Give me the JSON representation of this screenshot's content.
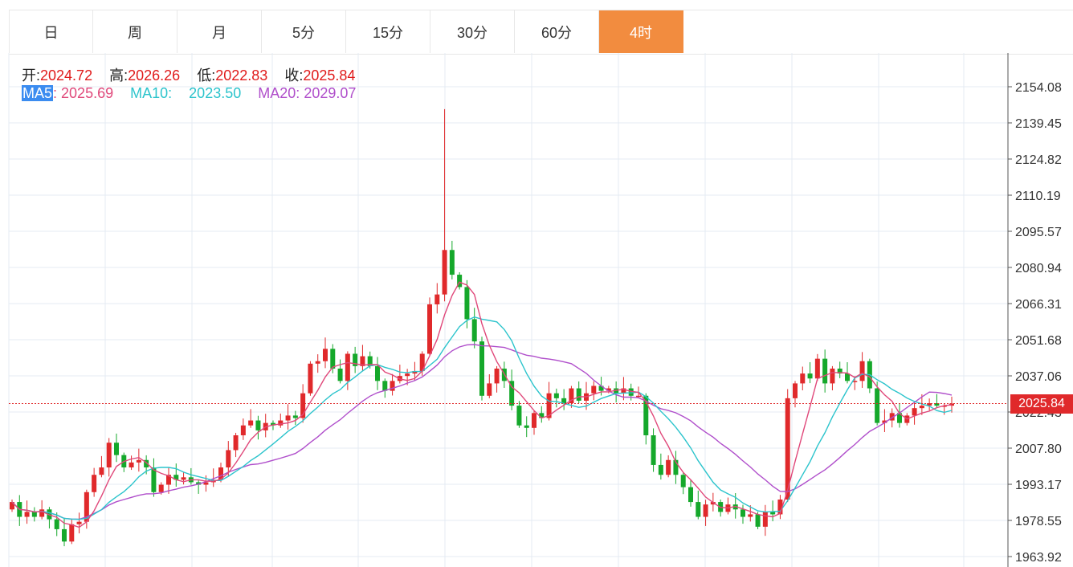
{
  "tabs": [
    {
      "label": "日",
      "active": false
    },
    {
      "label": "周",
      "active": false
    },
    {
      "label": "月",
      "active": false
    },
    {
      "label": "5分",
      "active": false
    },
    {
      "label": "15分",
      "active": false
    },
    {
      "label": "30分",
      "active": false
    },
    {
      "label": "60分",
      "active": false
    },
    {
      "label": "4时",
      "active": true
    }
  ],
  "legend": {
    "open_label": "开:",
    "open": "2024.72",
    "high_label": "高:",
    "high": "2026.26",
    "low_label": "低:",
    "low": "2022.83",
    "close_label": "收:",
    "close": "2025.84",
    "ma5_label": "MA5",
    "ma5": "2025.69",
    "ma10_label": "MA10:",
    "ma10": "2023.50",
    "ma20_label": "MA20:",
    "ma20": "2029.07"
  },
  "last_price": "2025.84",
  "colors": {
    "up": "#e0292b",
    "down": "#15a82b",
    "ma5": "#e0487a",
    "ma10": "#2cc4cc",
    "ma20": "#b04fcb",
    "active_tab": "#f28c3f",
    "grid": "#e4ebf3"
  },
  "chart_data": {
    "type": "candlestick",
    "y_ticks": [
      "2154.08",
      "2139.45",
      "2124.82",
      "2110.19",
      "2095.57",
      "2080.94",
      "2066.31",
      "2051.68",
      "2037.06",
      "2022.43",
      "2007.80",
      "1993.17",
      "1978.55",
      "1963.92"
    ],
    "ylim": [
      1963.92,
      2154.08
    ],
    "series": [
      {
        "name": "MA5"
      },
      {
        "name": "MA10"
      },
      {
        "name": "MA20"
      }
    ],
    "closes": [
      1986,
      1980,
      1982,
      1980,
      1983,
      1979,
      1975,
      1970,
      1977,
      1978,
      1990,
      1997,
      2000,
      2010,
      2005,
      2000,
      2002,
      2003,
      2000,
      1990,
      1993,
      1997,
      1995,
      1996,
      1994,
      1993,
      1994,
      1995,
      2000,
      2007,
      2013,
      2017,
      2019,
      2015,
      2018,
      2017,
      2019,
      2021,
      2020,
      2030,
      2042,
      2043,
      2048,
      2040,
      2035,
      2046,
      2041,
      2045,
      2041,
      2035,
      2031,
      2035,
      2037,
      2038,
      2039,
      2046,
      2066,
      2070,
      2088,
      2078,
      2073,
      2060,
      2051,
      2029,
      2034,
      2040,
      2035,
      2025,
      2017,
      2016,
      2022,
      2020,
      2030,
      2028,
      2026,
      2032,
      2027,
      2030,
      2033,
      2031,
      2032,
      2030,
      2032,
      2029,
      2029,
      2013,
      2001,
      1997,
      2003,
      1997,
      1992,
      1986,
      1980,
      1985,
      1986,
      1982,
      1985,
      1983,
      1980,
      1981,
      1976,
      1982,
      1981,
      1987,
      2028,
      2034,
      2038,
      2036,
      2044,
      2034,
      2040,
      2038,
      2035,
      2035,
      2043,
      2032,
      2018,
      2019,
      2022,
      2018,
      2021,
      2024,
      2025,
      2026,
      2025,
      2025,
      2025.84
    ]
  }
}
